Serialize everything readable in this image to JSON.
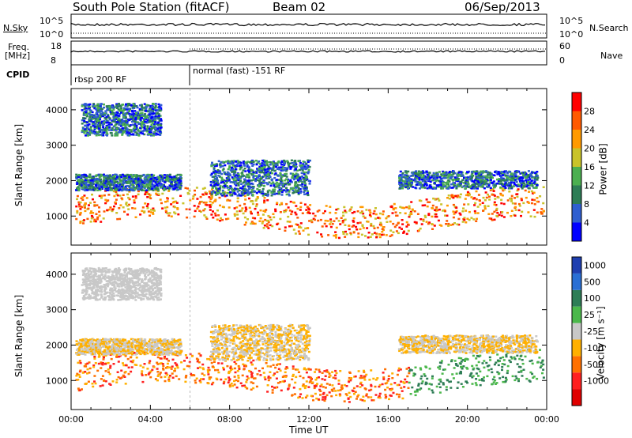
{
  "header": {
    "station_title": "South Pole Station (fitACF)",
    "beam": "Beam 02",
    "date": "06/Sep/2013"
  },
  "top_panels": {
    "nsky_label": "N.Sky",
    "nsky_ticks": [
      "10^5",
      "10^0"
    ],
    "nsearch_label": "N.Search",
    "nsearch_ticks": [
      "10^5",
      "10^0"
    ],
    "freq_label_1": "Freq.",
    "freq_label_2": "[MHz]",
    "freq_ticks": [
      "18",
      "8"
    ],
    "nave_label": "Nave",
    "nave_ticks": [
      "60",
      "0"
    ],
    "cpid_label": "CPID",
    "cpid_segments": [
      {
        "label": "rbsp 200 RF",
        "start_hour": 0
      },
      {
        "label": "normal (fast) -151 RF",
        "start_hour": 6
      }
    ]
  },
  "chart_data": [
    {
      "type": "heatmap",
      "title": "",
      "xlabel": "",
      "ylabel": "Slant Range [km]",
      "xlim": [
        0,
        24
      ],
      "ylim": [
        180,
        4600
      ],
      "y_ticks": [
        "1000",
        "2000",
        "3000",
        "4000"
      ],
      "colorbar": {
        "label": "Power [dB]",
        "ticks": [
          "4",
          "8",
          "12",
          "16",
          "20",
          "24",
          "28"
        ],
        "colors": [
          "#0000ff",
          "#2f5fd0",
          "#2e7d56",
          "#4caf50",
          "#c9c32a",
          "#ff9a00",
          "#ff5a00",
          "#ff0000"
        ]
      }
    },
    {
      "type": "heatmap",
      "title": "",
      "xlabel": "Time UT",
      "ylabel": "Slant Range [km]",
      "xlim": [
        0,
        24
      ],
      "ylim": [
        180,
        4600
      ],
      "x_ticks": [
        "00:00",
        "04:00",
        "08:00",
        "12:00",
        "16:00",
        "20:00",
        "00:00"
      ],
      "y_ticks": [
        "1000",
        "2000",
        "3000",
        "4000"
      ],
      "colorbar": {
        "label": "Velocity [m s⁻¹]",
        "ticks": [
          "1000",
          "500",
          "100",
          "25",
          "-25",
          "-100",
          "-500",
          "-1000"
        ],
        "colors": [
          "#1f3fb0",
          "#2a6fd4",
          "#2e7d56",
          "#4bb84b",
          "#c8c8c8",
          "#ffb000",
          "#ff7000",
          "#ff2020",
          "#e00000"
        ]
      }
    }
  ]
}
